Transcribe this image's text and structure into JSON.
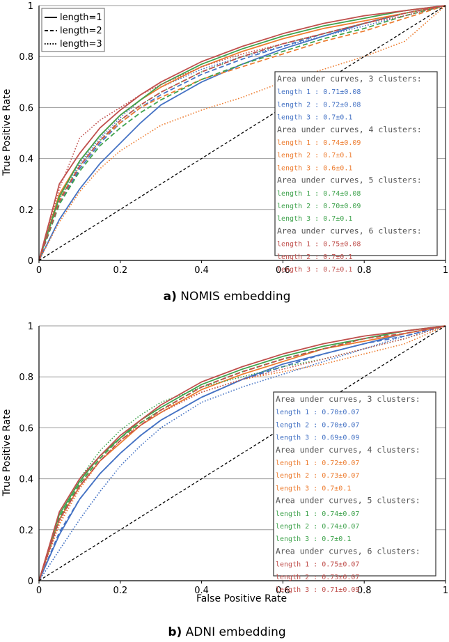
{
  "colors": {
    "c3": "#4472c4",
    "c4": "#ed7d31",
    "c5": "#3fa34d",
    "c6": "#c0504d",
    "grid": "#999999",
    "diagonal": "#000000"
  },
  "legend": {
    "items": [
      {
        "label": "length=1",
        "style": "solid"
      },
      {
        "label": "length=2",
        "style": "dashed"
      },
      {
        "label": "length=3",
        "style": "dotted"
      }
    ]
  },
  "chart_data": [
    {
      "type": "line",
      "panel_id": "a",
      "caption_letter": "a)",
      "caption_text": "NOMIS embedding",
      "xlabel": "",
      "ylabel": "True Positive Rate",
      "xlim": [
        0,
        1
      ],
      "ylim": [
        0,
        1
      ],
      "xticks": [
        "0",
        "0.2",
        "0.4",
        "0.6",
        "0.8",
        "1"
      ],
      "yticks": [
        "0",
        "0.2",
        "0.4",
        "0.6",
        "0.8",
        "1"
      ],
      "grid": "horizontal",
      "auc_groups": [
        {
          "header": "Area under curves, 3 clusters:",
          "color_key": "c3",
          "entries": [
            "length 1 : 0.71±0.08",
            "length 2 : 0.72±0.08",
            "length 3 : 0.7±0.1"
          ]
        },
        {
          "header": "Area under curves, 4 clusters:",
          "color_key": "c4",
          "entries": [
            "length 1 : 0.74±0.09",
            "length 2 : 0.7±0.1",
            "length 3 : 0.6±0.1"
          ]
        },
        {
          "header": "Area under curves, 5 clusters:",
          "color_key": "c5",
          "entries": [
            "length 1 : 0.74±0.08",
            "length 2 : 0.70±0.09",
            "length 3 : 0.7±0.1"
          ]
        },
        {
          "header": "Area under curves, 6 clusters:",
          "color_key": "c6",
          "entries": [
            "length 1 : 0.75±0.08",
            "length 2 : 0.7±0.1",
            "length 3 : 0.7±0.1"
          ]
        }
      ],
      "series": [
        {
          "name": "3 clusters, length 1",
          "color_key": "c3",
          "style": "solid",
          "x": [
            0,
            0.05,
            0.1,
            0.15,
            0.2,
            0.25,
            0.3,
            0.4,
            0.5,
            0.6,
            0.7,
            0.8,
            0.9,
            1
          ],
          "y": [
            0,
            0.16,
            0.28,
            0.38,
            0.46,
            0.54,
            0.61,
            0.7,
            0.77,
            0.83,
            0.88,
            0.93,
            0.97,
            1
          ]
        },
        {
          "name": "3 clusters, length 2",
          "color_key": "c3",
          "style": "dashed",
          "x": [
            0,
            0.05,
            0.1,
            0.15,
            0.2,
            0.25,
            0.3,
            0.4,
            0.5,
            0.6,
            0.7,
            0.8,
            0.9,
            1
          ],
          "y": [
            0,
            0.22,
            0.36,
            0.46,
            0.54,
            0.6,
            0.65,
            0.73,
            0.79,
            0.84,
            0.89,
            0.93,
            0.97,
            1
          ]
        },
        {
          "name": "3 clusters, length 3",
          "color_key": "c3",
          "style": "dotted",
          "x": [
            0,
            0.05,
            0.1,
            0.15,
            0.2,
            0.25,
            0.3,
            0.4,
            0.5,
            0.6,
            0.7,
            0.8,
            0.9,
            1
          ],
          "y": [
            0,
            0.25,
            0.38,
            0.48,
            0.56,
            0.63,
            0.68,
            0.75,
            0.8,
            0.84,
            0.88,
            0.92,
            0.96,
            1
          ]
        },
        {
          "name": "4 clusters, length 1",
          "color_key": "c4",
          "style": "solid",
          "x": [
            0,
            0.05,
            0.1,
            0.15,
            0.2,
            0.25,
            0.3,
            0.4,
            0.5,
            0.6,
            0.7,
            0.8,
            0.9,
            1
          ],
          "y": [
            0,
            0.26,
            0.39,
            0.49,
            0.57,
            0.63,
            0.68,
            0.76,
            0.82,
            0.87,
            0.91,
            0.94,
            0.97,
            1
          ]
        },
        {
          "name": "4 clusters, length 2",
          "color_key": "c4",
          "style": "dashed",
          "x": [
            0,
            0.05,
            0.1,
            0.15,
            0.2,
            0.25,
            0.3,
            0.4,
            0.5,
            0.6,
            0.7,
            0.8,
            0.9,
            1
          ],
          "y": [
            0,
            0.24,
            0.37,
            0.47,
            0.54,
            0.6,
            0.64,
            0.71,
            0.76,
            0.81,
            0.86,
            0.9,
            0.95,
            1
          ]
        },
        {
          "name": "4 clusters, length 3",
          "color_key": "c4",
          "style": "dotted",
          "x": [
            0,
            0.05,
            0.1,
            0.15,
            0.2,
            0.25,
            0.3,
            0.4,
            0.5,
            0.6,
            0.7,
            0.8,
            0.9,
            1
          ],
          "y": [
            0,
            0.15,
            0.27,
            0.36,
            0.43,
            0.48,
            0.53,
            0.59,
            0.64,
            0.7,
            0.75,
            0.8,
            0.86,
            1
          ]
        },
        {
          "name": "5 clusters, length 1",
          "color_key": "c5",
          "style": "solid",
          "x": [
            0,
            0.05,
            0.1,
            0.15,
            0.2,
            0.25,
            0.3,
            0.4,
            0.5,
            0.6,
            0.7,
            0.8,
            0.9,
            1
          ],
          "y": [
            0,
            0.25,
            0.39,
            0.49,
            0.57,
            0.63,
            0.69,
            0.77,
            0.83,
            0.88,
            0.92,
            0.95,
            0.98,
            1
          ]
        },
        {
          "name": "5 clusters, length 2",
          "color_key": "c5",
          "style": "dashed",
          "x": [
            0,
            0.05,
            0.1,
            0.15,
            0.2,
            0.25,
            0.3,
            0.4,
            0.5,
            0.6,
            0.7,
            0.8,
            0.9,
            1
          ],
          "y": [
            0,
            0.22,
            0.35,
            0.45,
            0.52,
            0.58,
            0.63,
            0.71,
            0.77,
            0.82,
            0.87,
            0.91,
            0.96,
            1
          ]
        },
        {
          "name": "5 clusters, length 3",
          "color_key": "c5",
          "style": "dotted",
          "x": [
            0,
            0.05,
            0.1,
            0.15,
            0.2,
            0.25,
            0.3,
            0.4,
            0.5,
            0.6,
            0.7,
            0.8,
            0.9,
            1
          ],
          "y": [
            0,
            0.24,
            0.37,
            0.47,
            0.55,
            0.61,
            0.66,
            0.74,
            0.8,
            0.85,
            0.89,
            0.93,
            0.97,
            1
          ]
        },
        {
          "name": "6 clusters, length 1",
          "color_key": "c6",
          "style": "solid",
          "x": [
            0,
            0.05,
            0.1,
            0.15,
            0.2,
            0.25,
            0.3,
            0.4,
            0.5,
            0.6,
            0.7,
            0.8,
            0.9,
            1
          ],
          "y": [
            0,
            0.3,
            0.42,
            0.52,
            0.59,
            0.65,
            0.7,
            0.78,
            0.84,
            0.89,
            0.93,
            0.96,
            0.98,
            1
          ]
        },
        {
          "name": "6 clusters, length 2",
          "color_key": "c6",
          "style": "dashed",
          "x": [
            0,
            0.05,
            0.1,
            0.15,
            0.2,
            0.25,
            0.3,
            0.4,
            0.5,
            0.6,
            0.7,
            0.8,
            0.9,
            1
          ],
          "y": [
            0,
            0.23,
            0.37,
            0.47,
            0.55,
            0.61,
            0.66,
            0.74,
            0.8,
            0.85,
            0.89,
            0.93,
            0.97,
            1
          ]
        },
        {
          "name": "6 clusters, length 3",
          "color_key": "c6",
          "style": "dotted",
          "x": [
            0,
            0.05,
            0.1,
            0.15,
            0.2,
            0.25,
            0.3,
            0.4,
            0.5,
            0.6,
            0.7,
            0.8,
            0.9,
            1
          ],
          "y": [
            0,
            0.28,
            0.48,
            0.55,
            0.6,
            0.65,
            0.69,
            0.76,
            0.81,
            0.85,
            0.89,
            0.93,
            0.96,
            1
          ]
        },
        {
          "name": "chance",
          "color_key": "diagonal",
          "style": "dashed",
          "x": [
            0,
            1
          ],
          "y": [
            0,
            1
          ]
        }
      ]
    },
    {
      "type": "line",
      "panel_id": "b",
      "caption_letter": "b)",
      "caption_text": "ADNI embedding",
      "xlabel": "False Positive Rate",
      "ylabel": "True Positive Rate",
      "xlim": [
        0,
        1
      ],
      "ylim": [
        0,
        1
      ],
      "xticks": [
        "0",
        "0.2",
        "0.4",
        "0.6",
        "0.8",
        "1"
      ],
      "yticks": [
        "0",
        "0.2",
        "0.4",
        "0.6",
        "0.8",
        "1"
      ],
      "grid": "horizontal",
      "auc_groups": [
        {
          "header": "Area under curves, 3 clusters:",
          "color_key": "c3",
          "entries": [
            "length 1 : 0.70±0.07",
            "length 2 : 0.70±0.07",
            "length 3 : 0.69±0.09"
          ]
        },
        {
          "header": "Area under curves, 4 clusters:",
          "color_key": "c4",
          "entries": [
            "length 1 : 0.72±0.07",
            "length 2 : 0.73±0.07",
            "length 3 : 0.7±0.1"
          ]
        },
        {
          "header": "Area under curves, 5 clusters:",
          "color_key": "c5",
          "entries": [
            "length 1 : 0.74±0.07",
            "length 2 : 0.74±0.07",
            "length 3 : 0.7±0.1"
          ]
        },
        {
          "header": "Area under curves, 6 clusters:",
          "color_key": "c6",
          "entries": [
            "length 1 : 0.75±0.07",
            "length 2 : 0.73±0.07",
            "length 3 : 0.71±0.09"
          ]
        }
      ],
      "series": [
        {
          "name": "3 clusters, length 1",
          "color_key": "c3",
          "style": "solid",
          "x": [
            0,
            0.05,
            0.1,
            0.15,
            0.2,
            0.25,
            0.3,
            0.4,
            0.5,
            0.6,
            0.7,
            0.8,
            0.9,
            1
          ],
          "y": [
            0,
            0.18,
            0.32,
            0.42,
            0.5,
            0.57,
            0.63,
            0.72,
            0.79,
            0.85,
            0.89,
            0.93,
            0.97,
            1
          ]
        },
        {
          "name": "3 clusters, length 2",
          "color_key": "c3",
          "style": "dashed",
          "x": [
            0,
            0.05,
            0.1,
            0.15,
            0.2,
            0.25,
            0.3,
            0.4,
            0.5,
            0.6,
            0.7,
            0.8,
            0.9,
            1
          ],
          "y": [
            0,
            0.19,
            0.32,
            0.42,
            0.5,
            0.57,
            0.63,
            0.72,
            0.79,
            0.84,
            0.89,
            0.93,
            0.96,
            1
          ]
        },
        {
          "name": "3 clusters, length 3",
          "color_key": "c3",
          "style": "dotted",
          "x": [
            0,
            0.05,
            0.1,
            0.15,
            0.2,
            0.25,
            0.3,
            0.4,
            0.5,
            0.6,
            0.7,
            0.8,
            0.9,
            1
          ],
          "y": [
            0,
            0.12,
            0.24,
            0.35,
            0.45,
            0.53,
            0.6,
            0.7,
            0.76,
            0.81,
            0.86,
            0.91,
            0.96,
            1
          ]
        },
        {
          "name": "4 clusters, length 1",
          "color_key": "c4",
          "style": "solid",
          "x": [
            0,
            0.05,
            0.1,
            0.15,
            0.2,
            0.25,
            0.3,
            0.4,
            0.5,
            0.6,
            0.7,
            0.8,
            0.9,
            1
          ],
          "y": [
            0,
            0.24,
            0.37,
            0.47,
            0.54,
            0.61,
            0.66,
            0.75,
            0.81,
            0.86,
            0.91,
            0.94,
            0.97,
            1
          ]
        },
        {
          "name": "4 clusters, length 2",
          "color_key": "c4",
          "style": "dashed",
          "x": [
            0,
            0.05,
            0.1,
            0.15,
            0.2,
            0.25,
            0.3,
            0.4,
            0.5,
            0.6,
            0.7,
            0.8,
            0.9,
            1
          ],
          "y": [
            0,
            0.24,
            0.38,
            0.48,
            0.56,
            0.62,
            0.67,
            0.76,
            0.82,
            0.87,
            0.91,
            0.94,
            0.97,
            1
          ]
        },
        {
          "name": "4 clusters, length 3",
          "color_key": "c4",
          "style": "dotted",
          "x": [
            0,
            0.05,
            0.1,
            0.15,
            0.2,
            0.25,
            0.3,
            0.4,
            0.5,
            0.6,
            0.7,
            0.8,
            0.9,
            1
          ],
          "y": [
            0,
            0.22,
            0.36,
            0.47,
            0.55,
            0.62,
            0.67,
            0.74,
            0.79,
            0.82,
            0.85,
            0.89,
            0.93,
            1
          ]
        },
        {
          "name": "5 clusters, length 1",
          "color_key": "c5",
          "style": "solid",
          "x": [
            0,
            0.05,
            0.1,
            0.15,
            0.2,
            0.25,
            0.3,
            0.4,
            0.5,
            0.6,
            0.7,
            0.8,
            0.9,
            1
          ],
          "y": [
            0,
            0.26,
            0.39,
            0.49,
            0.56,
            0.63,
            0.68,
            0.77,
            0.83,
            0.88,
            0.92,
            0.95,
            0.98,
            1
          ]
        },
        {
          "name": "5 clusters, length 2",
          "color_key": "c5",
          "style": "dashed",
          "x": [
            0,
            0.05,
            0.1,
            0.15,
            0.2,
            0.25,
            0.3,
            0.4,
            0.5,
            0.6,
            0.7,
            0.8,
            0.9,
            1
          ],
          "y": [
            0,
            0.25,
            0.38,
            0.48,
            0.56,
            0.62,
            0.67,
            0.76,
            0.82,
            0.87,
            0.91,
            0.95,
            0.98,
            1
          ]
        },
        {
          "name": "5 clusters, length 3",
          "color_key": "c5",
          "style": "dotted",
          "x": [
            0,
            0.05,
            0.1,
            0.15,
            0.2,
            0.25,
            0.3,
            0.4,
            0.5,
            0.6,
            0.7,
            0.8,
            0.9,
            1
          ],
          "y": [
            0,
            0.24,
            0.4,
            0.51,
            0.59,
            0.65,
            0.7,
            0.76,
            0.8,
            0.84,
            0.87,
            0.91,
            0.95,
            1
          ]
        },
        {
          "name": "6 clusters, length 1",
          "color_key": "c6",
          "style": "solid",
          "x": [
            0,
            0.05,
            0.1,
            0.15,
            0.2,
            0.25,
            0.3,
            0.4,
            0.5,
            0.6,
            0.7,
            0.8,
            0.9,
            1
          ],
          "y": [
            0,
            0.27,
            0.4,
            0.49,
            0.57,
            0.63,
            0.69,
            0.78,
            0.84,
            0.89,
            0.93,
            0.96,
            0.98,
            1
          ]
        },
        {
          "name": "6 clusters, length 2",
          "color_key": "c6",
          "style": "dashed",
          "x": [
            0,
            0.05,
            0.1,
            0.15,
            0.2,
            0.25,
            0.3,
            0.4,
            0.5,
            0.6,
            0.7,
            0.8,
            0.9,
            1
          ],
          "y": [
            0,
            0.24,
            0.37,
            0.47,
            0.55,
            0.61,
            0.67,
            0.76,
            0.82,
            0.87,
            0.91,
            0.95,
            0.97,
            1
          ]
        },
        {
          "name": "6 clusters, length 3",
          "color_key": "c6",
          "style": "dotted",
          "x": [
            0,
            0.05,
            0.1,
            0.15,
            0.2,
            0.25,
            0.3,
            0.4,
            0.5,
            0.6,
            0.7,
            0.8,
            0.9,
            1
          ],
          "y": [
            0,
            0.23,
            0.37,
            0.47,
            0.55,
            0.61,
            0.66,
            0.74,
            0.79,
            0.83,
            0.87,
            0.91,
            0.95,
            1
          ]
        },
        {
          "name": "chance",
          "color_key": "diagonal",
          "style": "dashed",
          "x": [
            0,
            1
          ],
          "y": [
            0,
            1
          ]
        }
      ]
    }
  ]
}
